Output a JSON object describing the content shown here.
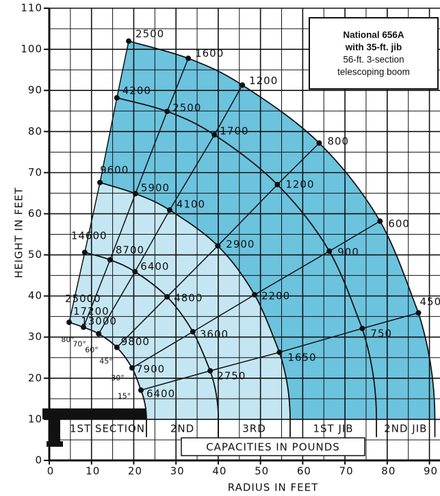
{
  "chart_data": {
    "type": "load-chart",
    "caption": [
      "National 656A",
      "with 35-ft. jib",
      "56-ft. 3-section",
      "telescoping boom"
    ],
    "x_label": "RADIUS IN FEET",
    "y_label": "HEIGHT IN FEET",
    "value_label": "CAPACITIES IN POUNDS",
    "categories": [
      "80°",
      "70°",
      "60°",
      "45°",
      "30°",
      "15°"
    ],
    "series": [
      {
        "name": "1ST SECTION",
        "x": [
          4.7,
          8.1,
          11.7,
          16.0,
          19.6,
          21.7
        ],
        "y": [
          33.6,
          32.4,
          30.8,
          27.5,
          22.5,
          17.1
        ],
        "values": [
          25000,
          17200,
          13000,
          9800,
          7900,
          6400
        ]
      },
      {
        "name": "2ND",
        "x": [
          8.4,
          14.4,
          20.3,
          27.9,
          34.0,
          38.1
        ],
        "y": [
          50.6,
          48.8,
          45.9,
          39.8,
          31.3,
          21.8
        ],
        "values": [
          14600,
          8700,
          6400,
          4800,
          3600,
          2750
        ]
      },
      {
        "name": "3RD",
        "x": [
          12.0,
          20.4,
          28.5,
          39.9,
          48.6,
          54.5
        ],
        "y": [
          67.6,
          64.9,
          60.9,
          52.2,
          40.3,
          26.3
        ],
        "values": [
          9600,
          5900,
          4100,
          2900,
          2200,
          1650
        ]
      },
      {
        "name": "1ST JIB",
        "x": [
          16.0,
          27.9,
          39.1,
          54.0,
          66.3,
          74.1
        ],
        "y": [
          88.2,
          84.9,
          79.2,
          67.1,
          50.9,
          32.1
        ],
        "values": [
          4200,
          2500,
          1700,
          1200,
          900,
          750
        ]
      },
      {
        "name": "2ND JIB",
        "x": [
          18.8,
          32.9,
          45.7,
          63.9,
          78.3,
          87.4
        ],
        "y": [
          102,
          97.8,
          91.3,
          77.2,
          58.2,
          35.9
        ],
        "values": [
          2500,
          1600,
          1200,
          800,
          600,
          450
        ]
      }
    ],
    "xlim": [
      0,
      92.5
    ],
    "ylim": [
      0,
      110
    ],
    "xticks": [
      0,
      10,
      20,
      30,
      40,
      50,
      60,
      70,
      80,
      90
    ],
    "yticks": [
      0,
      10,
      20,
      30,
      40,
      50,
      60,
      70,
      80,
      90,
      100,
      110
    ],
    "grid": true,
    "fill_color": "#6cc3de",
    "inner_fill_color": "#c4e6f2",
    "line_color": "#111111"
  }
}
